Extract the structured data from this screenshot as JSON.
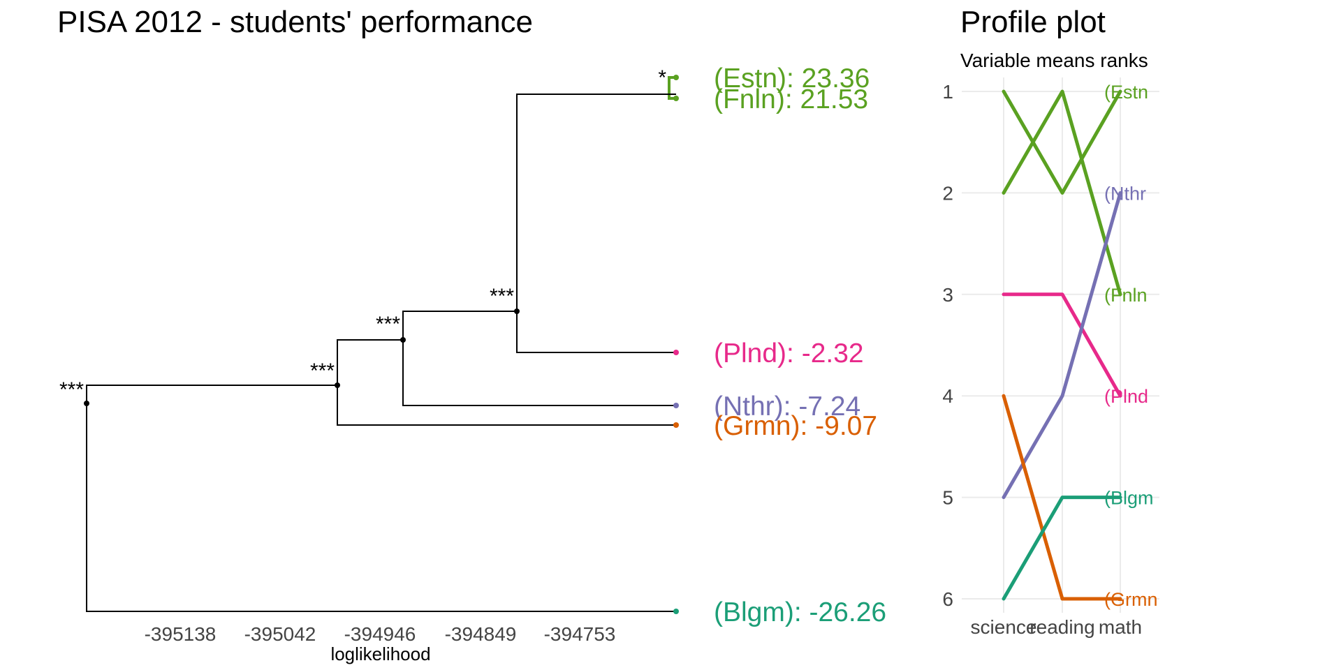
{
  "chart_data": [
    {
      "type": "dendrogram",
      "title": "PISA 2012 - students' performance",
      "xlabel": "loglikelihood",
      "x_ticks": [
        "-395138",
        "-395042",
        "-394946",
        "-394849",
        "-394753"
      ],
      "leaves": [
        {
          "label": "(Estn): 23.36",
          "color": "#5aa121"
        },
        {
          "label": "(Fnln): 21.53",
          "color": "#5aa121"
        },
        {
          "label": "(Plnd): -2.32",
          "color": "#e7298a"
        },
        {
          "label": "(Nthr): -7.24",
          "color": "#7570b3"
        },
        {
          "label": "(Grmn): -9.07",
          "color": "#d95f02"
        },
        {
          "label": "(Blgm): -26.26",
          "color": "#1b9e77"
        }
      ],
      "significance": [
        "*",
        "***",
        "***",
        "***",
        "***"
      ]
    },
    {
      "type": "line",
      "title": "Profile plot",
      "subtitle": "Variable means ranks",
      "categories": [
        "science",
        "reading",
        "math"
      ],
      "y_ticks": [
        "1",
        "2",
        "3",
        "4",
        "5",
        "6"
      ],
      "ylim": [
        1,
        6
      ],
      "y_reversed": true,
      "series": [
        {
          "name": "(Estn",
          "color": "#5aa121",
          "values": [
            1,
            2,
            1
          ]
        },
        {
          "name": "(Fnln",
          "color": "#5aa121",
          "values": [
            2,
            1,
            3
          ]
        },
        {
          "name": "(Plnd",
          "color": "#e7298a",
          "values": [
            3,
            3,
            4
          ]
        },
        {
          "name": "(Nthr",
          "color": "#7570b3",
          "values": [
            5,
            4,
            2
          ]
        },
        {
          "name": "(Grmn",
          "color": "#d95f02",
          "values": [
            4,
            6,
            6
          ]
        },
        {
          "name": "(Blgm",
          "color": "#1b9e77",
          "values": [
            6,
            5,
            5
          ]
        }
      ]
    }
  ]
}
